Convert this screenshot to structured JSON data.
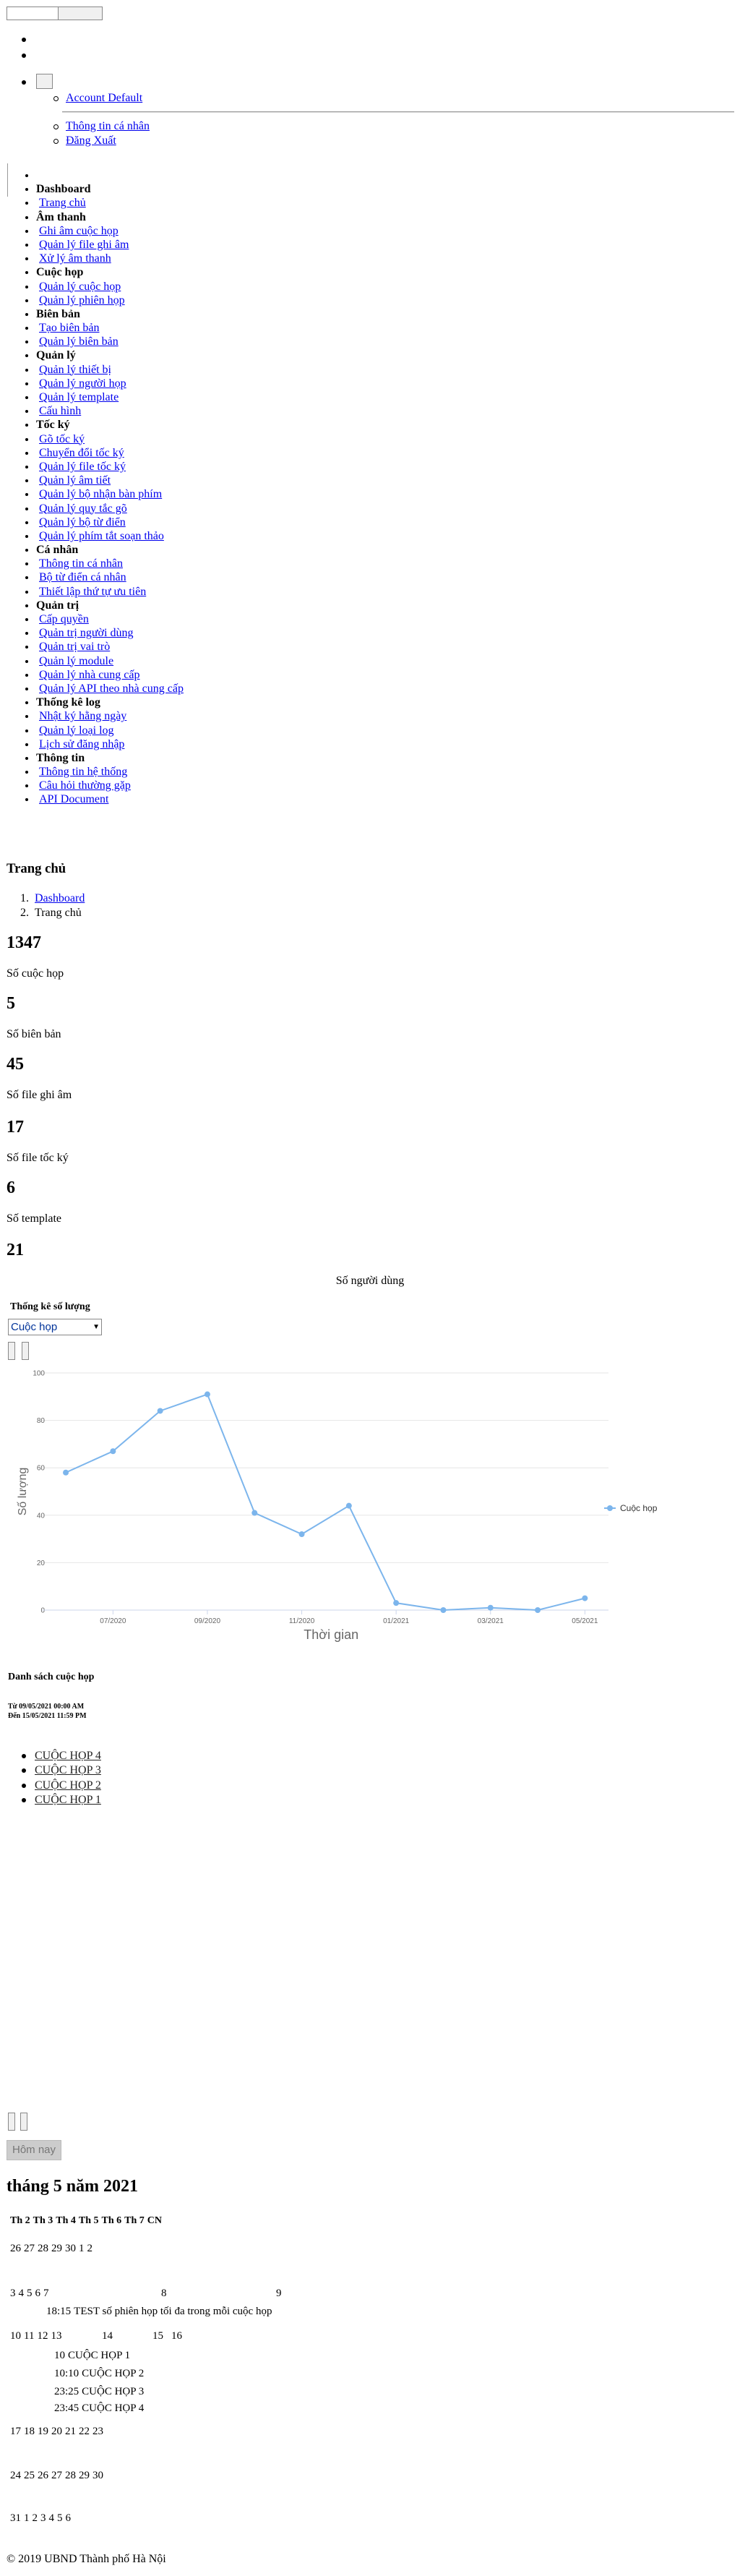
{
  "topbar": {
    "account": "Account Default",
    "menu": [
      "Thông tin cá nhân",
      "Đăng Xuất"
    ]
  },
  "sidebar": [
    {
      "title": "Dashboard",
      "items": [
        "Trang chủ"
      ]
    },
    {
      "title": "Âm thanh",
      "items": [
        "Ghi âm cuộc họp",
        "Quản lý file ghi âm",
        "Xử lý âm thanh"
      ]
    },
    {
      "title": "Cuộc họp",
      "items": [
        "Quản lý cuộc họp",
        "Quản lý phiên họp"
      ]
    },
    {
      "title": "Biên bản",
      "items": [
        "Tạo biên bản",
        "Quản lý biên bản"
      ]
    },
    {
      "title": "Quản lý",
      "items": [
        "Quản lý thiết bị",
        "Quản lý người họp",
        "Quản lý template",
        "Cấu hình"
      ]
    },
    {
      "title": "Tốc ký",
      "items": [
        "Gõ tốc ký",
        "Chuyển đổi tốc ký",
        "Quản lý file tốc ký",
        "Quản lý âm tiết",
        "Quản lý bộ nhận bàn phím",
        "Quản lý quy tắc gõ",
        "Quản lý bộ từ điển",
        "Quản lý phím tắt soạn thảo"
      ]
    },
    {
      "title": "Cá nhân",
      "items": [
        "Thông tin cá nhân",
        "Bộ từ điển cá nhân",
        "Thiết lập thứ tự ưu tiên"
      ]
    },
    {
      "title": "Quản trị",
      "items": [
        "Cấp quyền",
        "Quản trị người dùng",
        "Quản trị vai trò",
        "Quản lý module",
        "Quản lý nhà cung cấp",
        "Quản lý API theo nhà cung cấp"
      ]
    },
    {
      "title": "Thống kê log",
      "items": [
        "Nhật ký hằng ngày",
        "Quản lý loại log",
        "Lịch sử đăng nhập"
      ]
    },
    {
      "title": "Thông tin",
      "items": [
        "Thông tin hệ thống",
        "Câu hỏi thường gặp",
        "API Document"
      ]
    }
  ],
  "page_title": "Trang chủ",
  "breadcrumb": [
    "Dashboard",
    "Trang chủ"
  ],
  "stats": [
    {
      "value": 1347,
      "label": "Số cuộc họp"
    },
    {
      "value": 5,
      "label": "Số biên bản"
    },
    {
      "value": 45,
      "label": "Số file ghi âm"
    },
    {
      "value": 17,
      "label": "Số file tốc ký"
    },
    {
      "value": 6,
      "label": "Số template"
    },
    {
      "value": 21,
      "label": "Số người dùng"
    }
  ],
  "stats_panel": {
    "title": "Thống kê số lượng",
    "select": "Cuộc họp"
  },
  "chart_data": {
    "type": "line",
    "categories": [
      null,
      "07/2020",
      null,
      "09/2020",
      null,
      "11/2020",
      null,
      "01/2021",
      null,
      "03/2021",
      null,
      "05/2021"
    ],
    "series": [
      {
        "name": "Cuộc họp",
        "color": "#7cb5ec",
        "values": [
          58,
          67,
          84,
          91,
          41,
          32,
          44,
          3,
          0,
          1,
          0,
          5
        ]
      }
    ],
    "ylim": [
      0,
      100
    ],
    "yticks": [
      0,
      20,
      40,
      60,
      80,
      100
    ],
    "y_label": "Số lượng",
    "x_label": "Thời gian",
    "grid": true,
    "legend": "right"
  },
  "meetings": {
    "title": "Danh sách cuộc họp",
    "from": "Từ 09/05/2021 00:00 AM",
    "to": "Đến 15/05/2021 11:59 PM",
    "items": [
      "CUỘC HỌP 4",
      "CUỘC HỌP 3",
      "CUỘC HỌP 2",
      "CUỘC HỌP 1"
    ]
  },
  "calendar": {
    "today_button": "Hôm nay",
    "title": "tháng 5 năm 2021",
    "weekdays": [
      "Th 2",
      "Th 3",
      "Th 4",
      "Th 5",
      "Th 6",
      "Th 7",
      "CN"
    ],
    "weeks": [
      [
        26,
        27,
        28,
        29,
        30,
        1,
        2
      ],
      [
        3,
        4,
        5,
        6,
        7,
        8,
        9
      ],
      [
        10,
        11,
        12,
        13,
        14,
        15,
        16
      ],
      [
        17,
        18,
        19,
        20,
        21,
        22,
        23
      ],
      [
        24,
        25,
        26,
        27,
        28,
        29,
        30
      ],
      [
        31,
        1,
        2,
        3,
        4,
        5,
        6
      ]
    ],
    "events": [
      {
        "time": "18:15",
        "title": "TEST số phiên họp tối đa trong mỗi cuộc họp"
      },
      {
        "time": "10",
        "title": "CUỘC HỌP 1"
      },
      {
        "time": "10:10",
        "title": "CUỘC HỌP 2"
      },
      {
        "time": "23:25",
        "title": "CUỘC HỌP 3"
      },
      {
        "time": "23:45",
        "title": "CUỘC HỌP 4"
      }
    ]
  },
  "footer": "© 2019 UBND Thành phố Hà Nội"
}
